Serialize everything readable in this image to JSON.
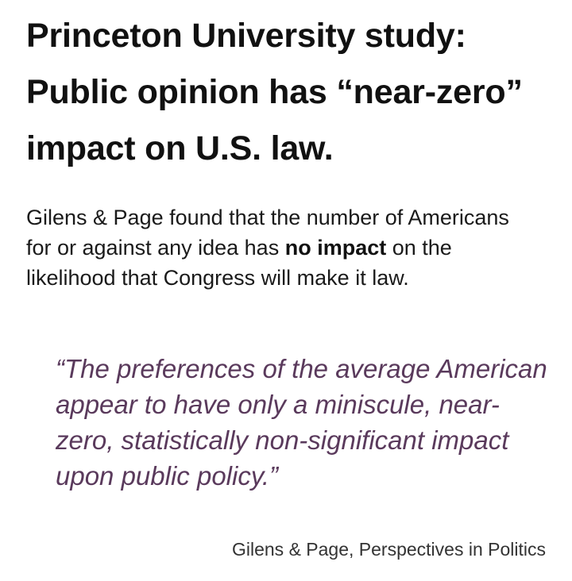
{
  "headline": "Princeton University study: Public opinion has “near-zero” impact on U.S. law.",
  "body": {
    "part1": "Gilens & Page found that the number of Americans for or against any idea has ",
    "emphasis": "no impact",
    "part2": " on the likelihood that Congress will make it law."
  },
  "quote": "“The preferences of the average American appear to have only a miniscule, near-zero, statistically non-significant impact upon public policy.”",
  "attribution": "Gilens & Page, Perspectives in Politics",
  "colors": {
    "quote_text": "#5a3a5c",
    "headline_text": "#111111"
  }
}
